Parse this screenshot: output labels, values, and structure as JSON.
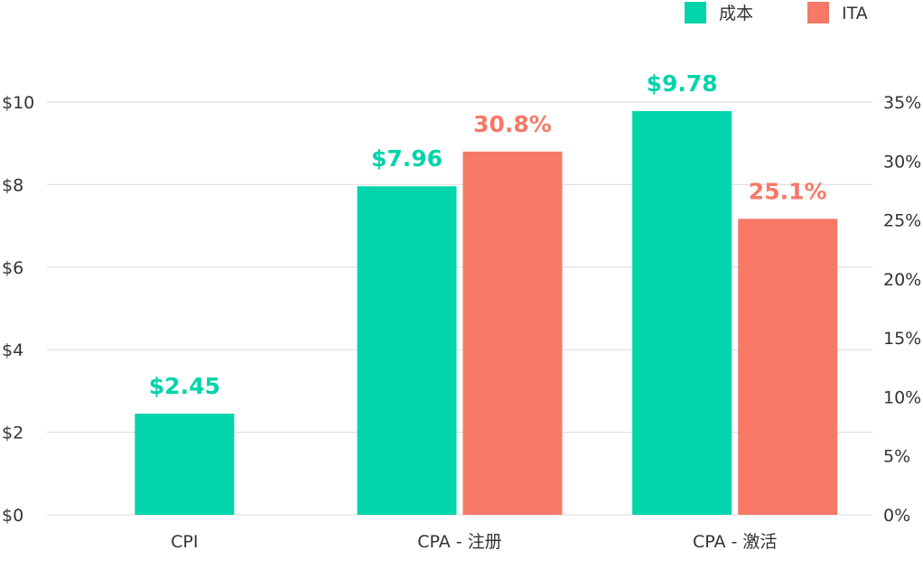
{
  "chart_data": {
    "type": "bar",
    "categories": [
      "CPI",
      "CPA - 注册",
      "CPA - 激活"
    ],
    "series": [
      {
        "name": "成本",
        "axis": "left",
        "values": [
          2.45,
          7.96,
          9.78
        ],
        "labels": [
          "$2.45",
          "$7.96",
          "$9.78"
        ],
        "color": "#00d4aa"
      },
      {
        "name": "ITA",
        "axis": "right",
        "values": [
          null,
          30.8,
          25.1
        ],
        "labels": [
          "",
          "30.8%",
          "25.1%"
        ],
        "color": "#f67968"
      }
    ],
    "y_left": {
      "ylim": [
        0,
        10
      ],
      "ticks": [
        0,
        2,
        4,
        6,
        8,
        10
      ],
      "tick_labels": [
        "$0",
        "$2",
        "$4",
        "$6",
        "$8",
        "$10"
      ]
    },
    "y_right": {
      "ylim": [
        0,
        35
      ],
      "ticks": [
        0,
        5,
        10,
        15,
        20,
        25,
        30,
        35
      ],
      "tick_labels": [
        "0%",
        "5%",
        "10%",
        "15%",
        "20%",
        "25%",
        "30%",
        "35%"
      ]
    },
    "grid": true,
    "legend": "top-right"
  }
}
